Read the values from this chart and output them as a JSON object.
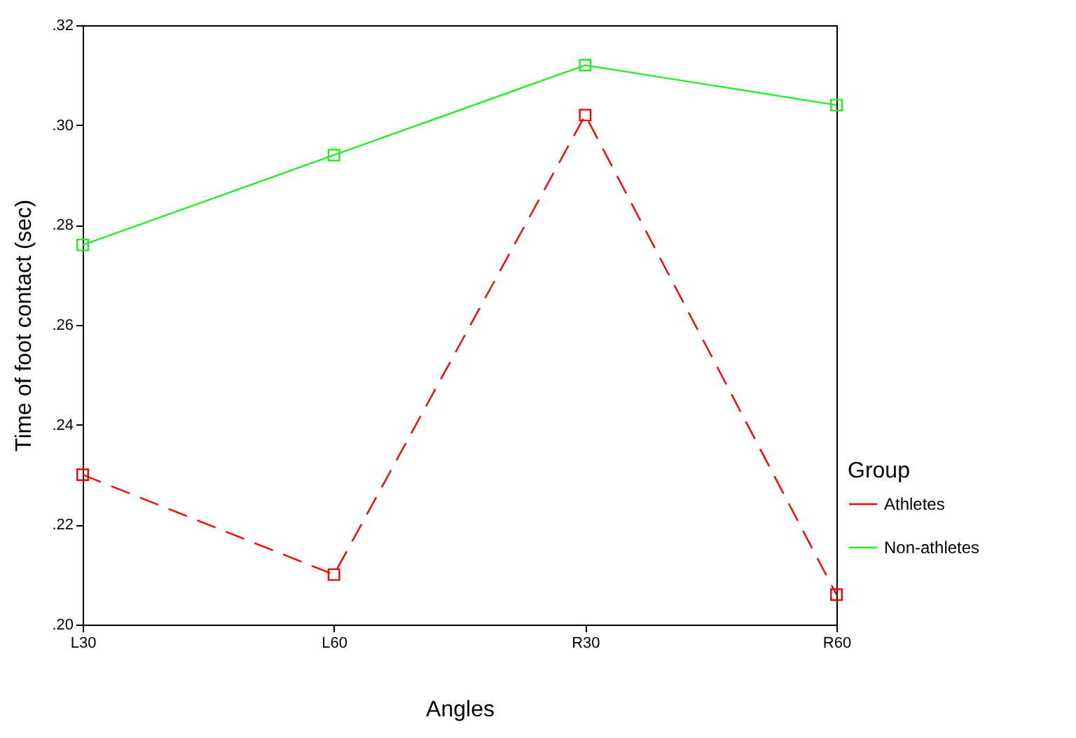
{
  "chart_data": {
    "type": "line",
    "xlabel": "Angles",
    "ylabel": "Time of foot contact (sec)",
    "legend_title": "Group",
    "categories": [
      "L30",
      "L60",
      "R30",
      "R60"
    ],
    "series": [
      {
        "name": "Athletes",
        "color": "#ff0000",
        "line_style": "dashed",
        "values": [
          0.23,
          0.21,
          0.302,
          0.206
        ]
      },
      {
        "name": "Non-athletes",
        "color": "#22ee22",
        "line_style": "solid",
        "values": [
          0.276,
          0.294,
          0.312,
          0.304
        ]
      }
    ],
    "ylim": [
      0.2,
      0.32
    ],
    "yticks": [
      {
        "value": 0.2,
        "label": ".20"
      },
      {
        "value": 0.22,
        "label": ".22"
      },
      {
        "value": 0.24,
        "label": ".24"
      },
      {
        "value": 0.26,
        "label": ".26"
      },
      {
        "value": 0.28,
        "label": ".28"
      },
      {
        "value": 0.3,
        "label": ".30"
      },
      {
        "value": 0.32,
        "label": ".32"
      }
    ],
    "grid": false,
    "legend": "right",
    "marker": "square"
  }
}
